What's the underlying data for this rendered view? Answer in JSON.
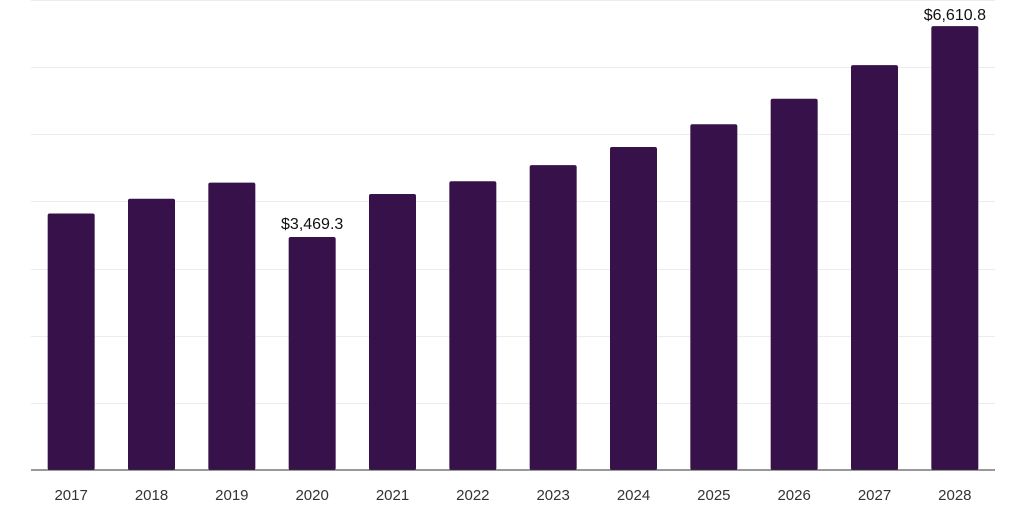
{
  "chart_data": {
    "type": "bar",
    "title": "",
    "xlabel": "",
    "ylabel": "",
    "categories": [
      "2017",
      "2018",
      "2019",
      "2020",
      "2021",
      "2022",
      "2023",
      "2024",
      "2025",
      "2026",
      "2027",
      "2028"
    ],
    "values": [
      3820,
      4040,
      4280,
      3469.3,
      4110,
      4300,
      4540,
      4810,
      5150,
      5530,
      6030,
      6610.8
    ],
    "data_labels": [
      {
        "category": "2020",
        "text": "$3,469.3"
      },
      {
        "category": "2028",
        "text": "$6,610.8"
      }
    ],
    "ylim": [
      0,
      7000
    ],
    "grid": true,
    "y_tick_labels_shown": false,
    "bar_color": "#36114a"
  }
}
